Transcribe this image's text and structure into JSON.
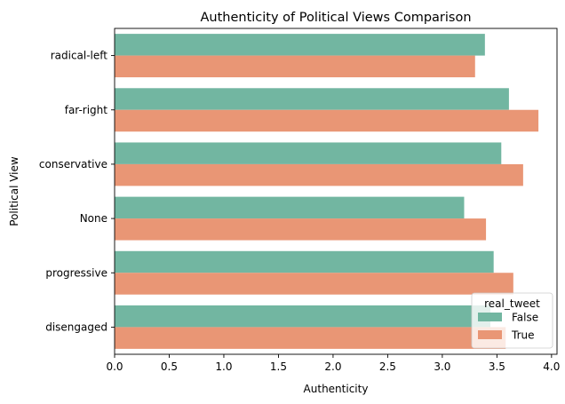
{
  "chart_data": {
    "type": "bar",
    "orientation": "horizontal",
    "title": "Authenticity of Political Views Comparison",
    "xlabel": "Authenticity",
    "ylabel": "Political View",
    "xlim": [
      0,
      4.05
    ],
    "xticks": [
      "0.0",
      "0.5",
      "1.0",
      "1.5",
      "2.0",
      "2.5",
      "3.0",
      "3.5",
      "4.0"
    ],
    "xtick_values": [
      0,
      0.5,
      1.0,
      1.5,
      2.0,
      2.5,
      3.0,
      3.5,
      4.0
    ],
    "categories": [
      "radical-left",
      "far-right",
      "conservative",
      "None",
      "progressive",
      "disengaged"
    ],
    "legend": {
      "title": "real_tweet",
      "placement": "lower-right"
    },
    "grid": false,
    "series": [
      {
        "name": "False",
        "color": "#72b6a1",
        "values": [
          3.39,
          3.61,
          3.54,
          3.2,
          3.47,
          3.44
        ]
      },
      {
        "name": "True",
        "color": "#e99675",
        "values": [
          3.3,
          3.88,
          3.74,
          3.4,
          3.65,
          3.58
        ]
      }
    ]
  }
}
